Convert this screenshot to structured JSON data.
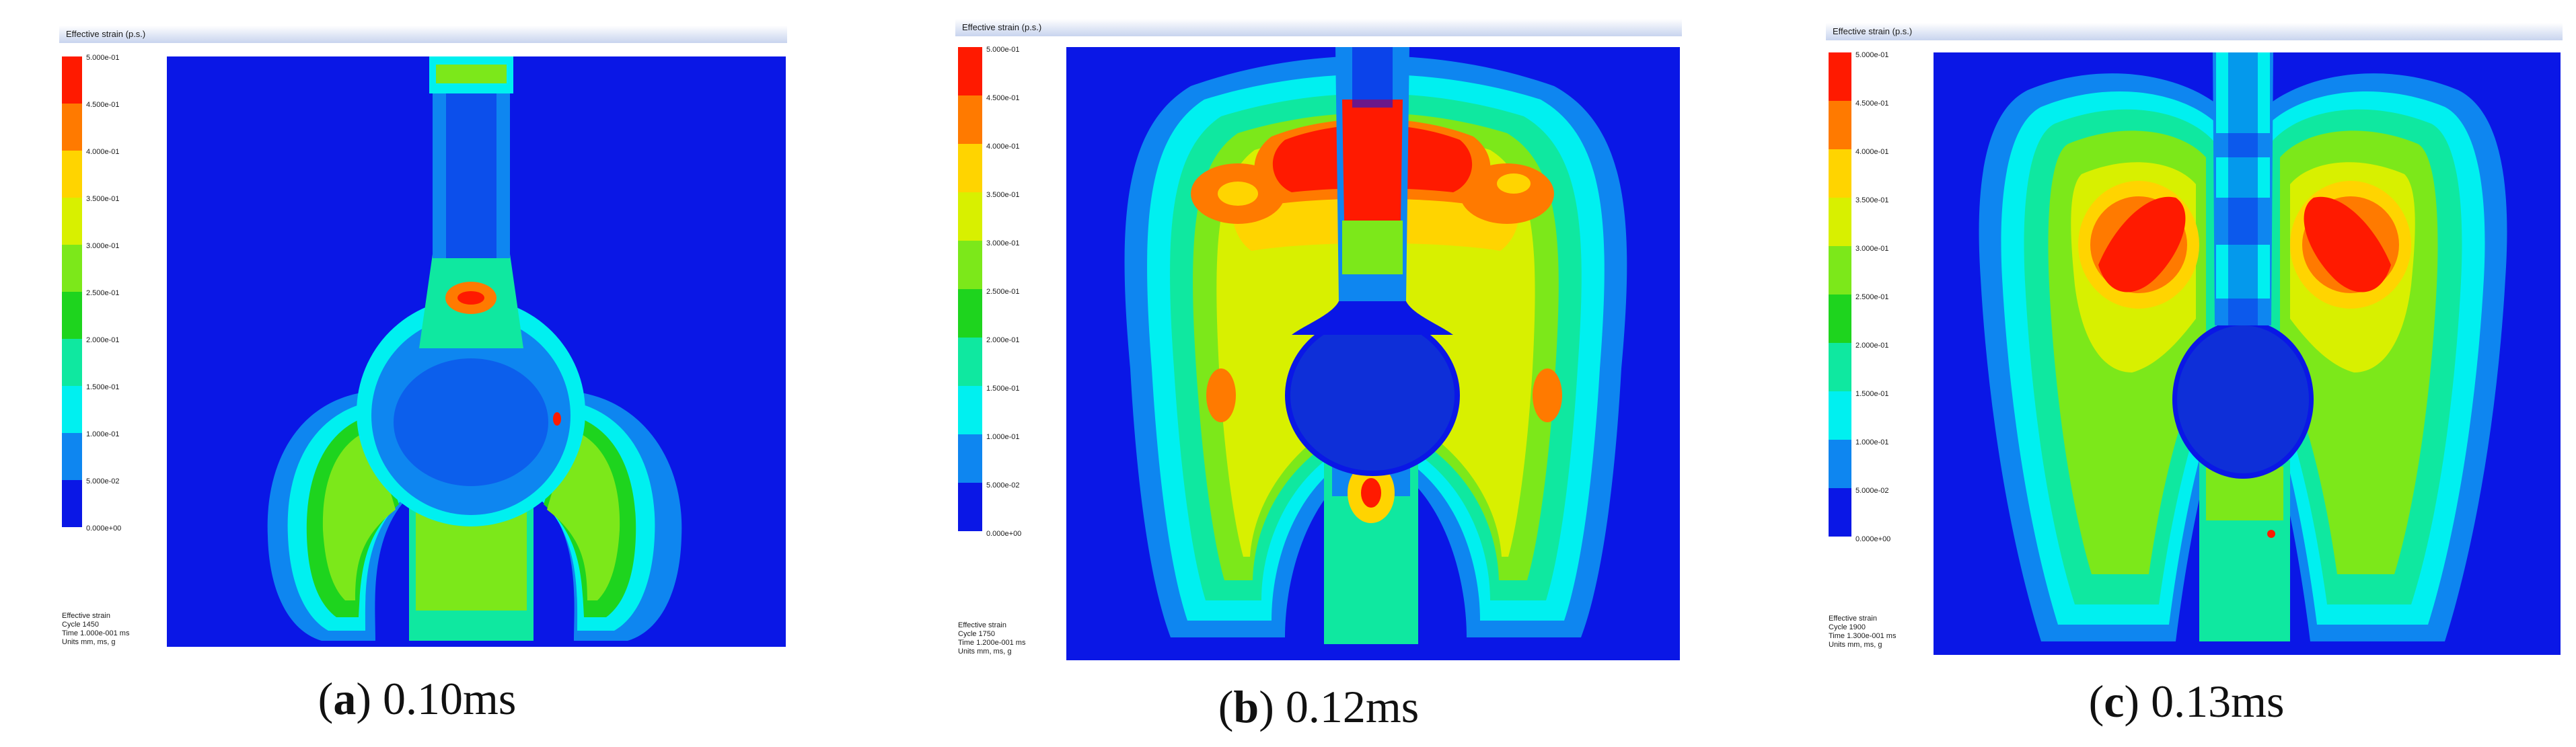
{
  "panels": [
    {
      "id": "a",
      "letter": "a",
      "time_label": "0.10ms",
      "header": "Effective strain (p.s.)",
      "legend_ticks": [
        "5.000e-01",
        "4.500e-01",
        "4.000e-01",
        "3.500e-01",
        "3.000e-01",
        "2.500e-01",
        "2.000e-01",
        "1.500e-01",
        "1.000e-01",
        "5.000e-02",
        "0.000e+00"
      ],
      "info_lines": [
        "Effective strain",
        "Cycle 1450",
        "Time 1.000e-001 ms",
        "Units mm, ms, g"
      ]
    },
    {
      "id": "b",
      "letter": "b",
      "time_label": "0.12ms",
      "header": "Effective strain (p.s.)",
      "legend_ticks": [
        "5.000e-01",
        "4.500e-01",
        "4.000e-01",
        "3.500e-01",
        "3.000e-01",
        "2.500e-01",
        "2.000e-01",
        "1.500e-01",
        "1.000e-01",
        "5.000e-02",
        "0.000e+00"
      ],
      "info_lines": [
        "Effective strain",
        "Cycle 1750",
        "Time 1.200e-001 ms",
        "Units mm, ms, g"
      ]
    },
    {
      "id": "c",
      "letter": "c",
      "time_label": "0.13ms",
      "header": "Effective strain (p.s.)",
      "legend_ticks": [
        "5.000e-01",
        "4.500e-01",
        "4.000e-01",
        "3.500e-01",
        "3.000e-01",
        "2.500e-01",
        "2.000e-01",
        "1.500e-01",
        "1.000e-01",
        "5.000e-02",
        "0.000e+00"
      ],
      "info_lines": [
        "Effective strain",
        "Cycle 1900",
        "Time 1.300e-001 ms",
        "Units mm, ms, g"
      ]
    }
  ],
  "colors": {
    "background": "#0a17e6",
    "legend_scale": [
      "#ff1a00",
      "#ff7a00",
      "#ffd400",
      "#d8f000",
      "#7ce81a",
      "#1ed41e",
      "#0fe8a0",
      "#00f0f0",
      "#0e86f0",
      "#0a17e6"
    ]
  }
}
